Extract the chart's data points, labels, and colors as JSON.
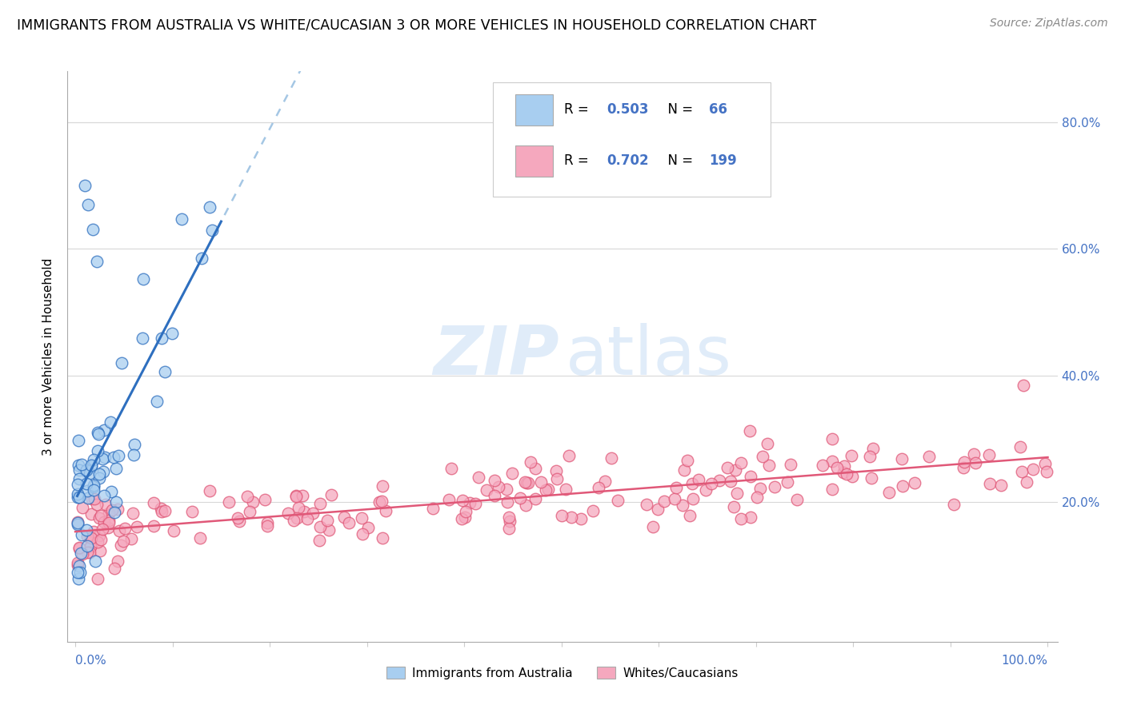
{
  "title": "IMMIGRANTS FROM AUSTRALIA VS WHITE/CAUCASIAN 3 OR MORE VEHICLES IN HOUSEHOLD CORRELATION CHART",
  "source": "Source: ZipAtlas.com",
  "ylabel": "3 or more Vehicles in Household",
  "r_blue": "R = 0.503",
  "n_blue": "N =  66",
  "r_pink": "R = 0.702",
  "n_pink": "N = 199",
  "legend_label_blue": "Immigrants from Australia",
  "legend_label_pink": "Whites/Caucasians",
  "color_blue": "#A8CEF0",
  "color_pink": "#F5A8BE",
  "line_color_blue": "#2E6FBF",
  "line_color_pink": "#E05878",
  "line_color_blue_dashed": "#95BDE0",
  "legend_text_color": "#4472C4",
  "ytick_color": "#4472C4"
}
